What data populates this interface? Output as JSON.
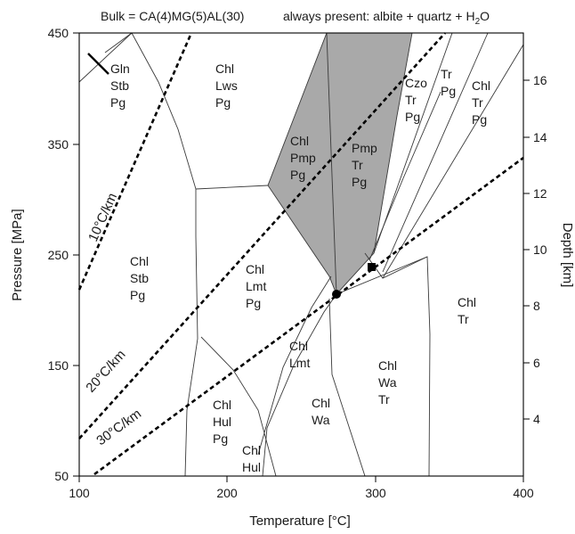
{
  "header": {
    "bulk": "Bulk = CA(4)MG(5)AL(30)",
    "always_present_prefix": "always present: albite + quartz + H",
    "always_present_sub": "2",
    "always_present_suffix": "O"
  },
  "axes": {
    "x": {
      "title": "Temperature [°C]",
      "range": [
        100,
        400
      ],
      "ticks": [
        "100",
        "200",
        "300",
        "400"
      ]
    },
    "y_left": {
      "title": "Pressure [MPa]",
      "range": [
        50,
        450
      ],
      "ticks": [
        "50",
        "150",
        "250",
        "350",
        "450"
      ]
    },
    "y_right": {
      "title": "Depth [km]",
      "ticks": [
        "4",
        "6",
        "8",
        "10",
        "12",
        "14",
        "16"
      ]
    }
  },
  "geotherms": [
    {
      "label": "10°C/km"
    },
    {
      "label": "20°C/km"
    },
    {
      "label": "30°C/km"
    }
  ],
  "fields": [
    {
      "id": "gln-stb-pg",
      "lines": [
        "Gln",
        "Stb",
        "Pg"
      ]
    },
    {
      "id": "chl-lws-pg",
      "lines": [
        "Chl",
        "Lws",
        "Pg"
      ]
    },
    {
      "id": "chl-pmp-pg",
      "lines": [
        "Chl",
        "Pmp",
        "Pg"
      ]
    },
    {
      "id": "pmp-tr-pg",
      "lines": [
        "Pmp",
        "Tr",
        "Pg"
      ]
    },
    {
      "id": "czo-tr-pg",
      "lines": [
        "Czo",
        "Tr",
        "Pg"
      ]
    },
    {
      "id": "tr-pg",
      "lines": [
        "Tr",
        "Pg"
      ]
    },
    {
      "id": "chl-tr-pg",
      "lines": [
        "Chl",
        "Tr",
        "Pg"
      ]
    },
    {
      "id": "chl-stb-pg",
      "lines": [
        "Chl",
        "Stb",
        "Pg"
      ]
    },
    {
      "id": "chl-lmt-pg",
      "lines": [
        "Chl",
        "Lmt",
        "Pg"
      ]
    },
    {
      "id": "chl-tr",
      "lines": [
        "Chl",
        "Tr"
      ]
    },
    {
      "id": "chl-lmt",
      "lines": [
        "Chl",
        "Lmt"
      ]
    },
    {
      "id": "chl-wa-tr",
      "lines": [
        "Chl",
        "Wa",
        "Tr"
      ]
    },
    {
      "id": "chl-wa",
      "lines": [
        "Chl",
        "Wa"
      ]
    },
    {
      "id": "chl-hul-pg",
      "lines": [
        "Chl",
        "Hul",
        "Pg"
      ]
    },
    {
      "id": "chl-hul",
      "lines": [
        "Chl",
        "Hul"
      ]
    }
  ],
  "highlighted_field": "pumpellyite stability (shaded)",
  "markers": [
    {
      "type": "circle",
      "T": 275,
      "P": 213
    },
    {
      "type": "square",
      "T": 300,
      "P": 237
    }
  ]
}
